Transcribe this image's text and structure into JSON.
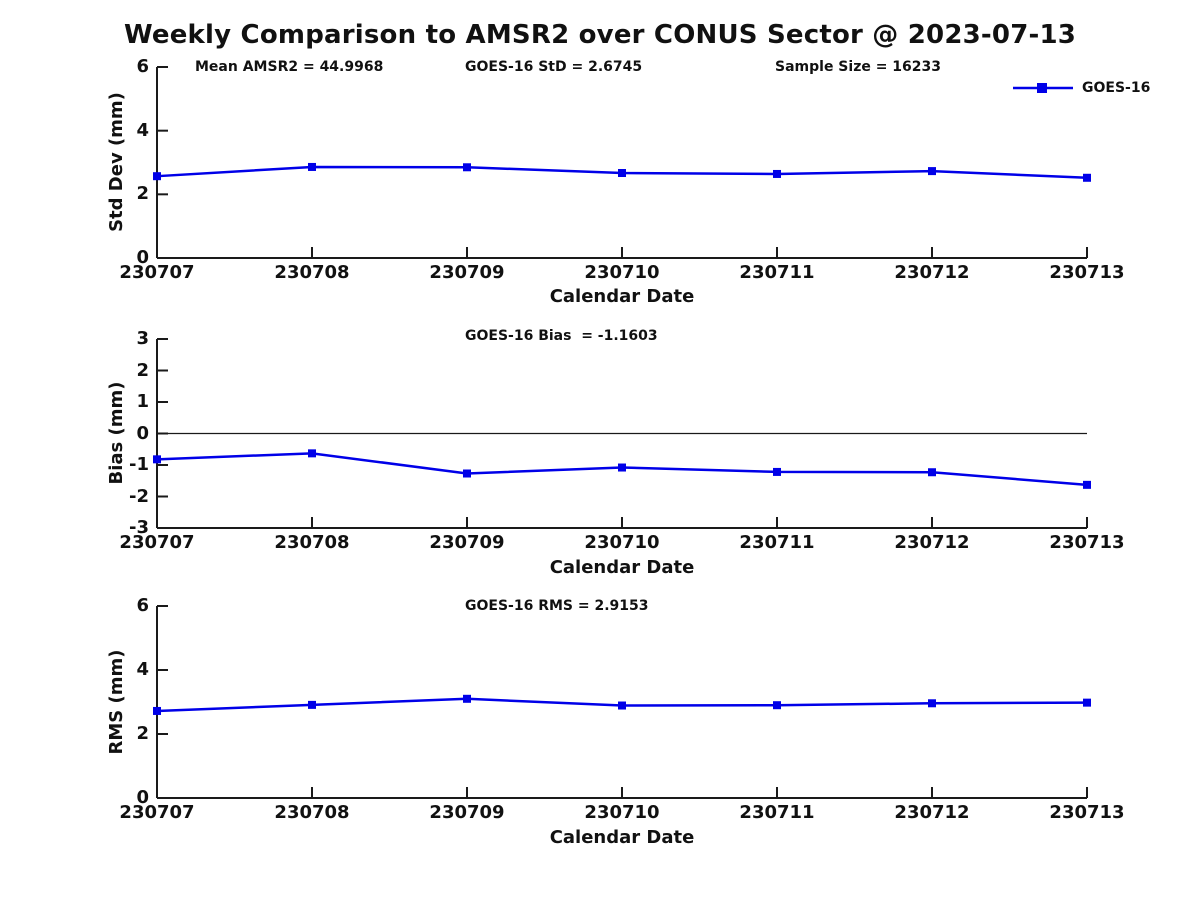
{
  "title": "Weekly Comparison to AMSR2 over CONUS Sector @ 2023-07-13",
  "colors": {
    "line": "#0000E8",
    "axis": "#1a1a1a",
    "text": "#111111"
  },
  "legend": {
    "series_label": "GOES-16"
  },
  "chart_data": [
    {
      "type": "line",
      "id": "std-dev",
      "annotations": [
        "Mean AMSR2 = 44.9968",
        "GOES-16 StD = 2.6745",
        "Sample Size = 16233"
      ],
      "categories": [
        "230707",
        "230708",
        "230709",
        "230710",
        "230711",
        "230712",
        "230713"
      ],
      "series": [
        {
          "name": "GOES-16",
          "values": [
            2.57,
            2.86,
            2.85,
            2.67,
            2.64,
            2.73,
            2.52
          ]
        }
      ],
      "xlabel": "Calendar Date",
      "ylabel": "Std Dev (mm)",
      "ylim": [
        0,
        6
      ],
      "yticks": [
        0,
        2,
        4,
        6
      ],
      "zero_line": false,
      "grid": false,
      "legend_position": "top-right"
    },
    {
      "type": "line",
      "id": "bias",
      "annotations": [
        "GOES-16 Bias  = -1.1603"
      ],
      "categories": [
        "230707",
        "230708",
        "230709",
        "230710",
        "230711",
        "230712",
        "230713"
      ],
      "series": [
        {
          "name": "GOES-16",
          "values": [
            -0.82,
            -0.63,
            -1.27,
            -1.08,
            -1.22,
            -1.23,
            -1.63
          ]
        }
      ],
      "xlabel": "Calendar Date",
      "ylabel": "Bias (mm)",
      "ylim": [
        -3,
        3
      ],
      "yticks": [
        3,
        2,
        1,
        0,
        -1,
        -2,
        -3
      ],
      "zero_line": true,
      "grid": false,
      "legend_position": "none"
    },
    {
      "type": "line",
      "id": "rms",
      "annotations": [
        "GOES-16 RMS = 2.9153"
      ],
      "categories": [
        "230707",
        "230708",
        "230709",
        "230710",
        "230711",
        "230712",
        "230713"
      ],
      "series": [
        {
          "name": "GOES-16",
          "values": [
            2.72,
            2.91,
            3.1,
            2.89,
            2.9,
            2.96,
            2.98
          ]
        }
      ],
      "xlabel": "Calendar Date",
      "ylabel": "RMS (mm)",
      "ylim": [
        0,
        6
      ],
      "yticks": [
        0,
        2,
        4,
        6
      ],
      "zero_line": false,
      "grid": false,
      "legend_position": "none"
    }
  ]
}
